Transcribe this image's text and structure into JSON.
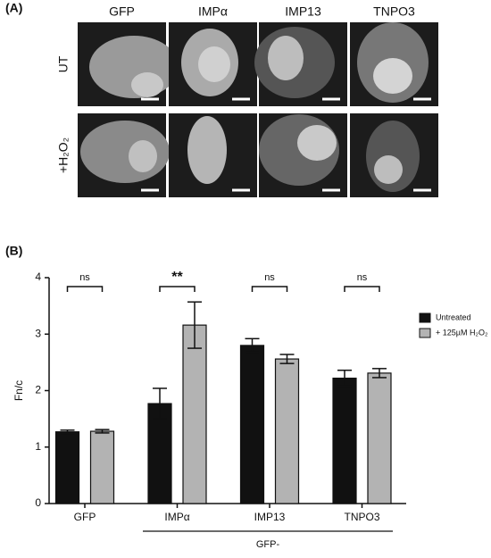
{
  "panel_a": {
    "label": "(A)",
    "columns": [
      "GFP",
      "IMPα",
      "IMP13",
      "TNPO3"
    ],
    "rows": [
      "UT",
      "+H₂O₂"
    ]
  },
  "chart_data": {
    "type": "bar",
    "panel_label": "(B)",
    "ylabel": "Fn/c",
    "categories": [
      "GFP",
      "IMPα",
      "IMP13",
      "TNPO3"
    ],
    "group_label": "GFP-",
    "series": [
      {
        "name": "Untreated",
        "color": "#111111",
        "values": [
          1.27,
          1.77,
          2.8,
          2.22
        ],
        "errors": [
          0.03,
          0.27,
          0.12,
          0.14
        ]
      },
      {
        "name": "+ 125µM H₂O₂",
        "color": "#b3b3b3",
        "values": [
          1.28,
          3.16,
          2.56,
          2.31
        ],
        "errors": [
          0.03,
          0.41,
          0.08,
          0.08
        ]
      }
    ],
    "significance": [
      "ns",
      "**",
      "ns",
      "ns"
    ],
    "ylim": [
      0,
      4
    ],
    "yticks": [
      0,
      1,
      2,
      3,
      4
    ]
  }
}
